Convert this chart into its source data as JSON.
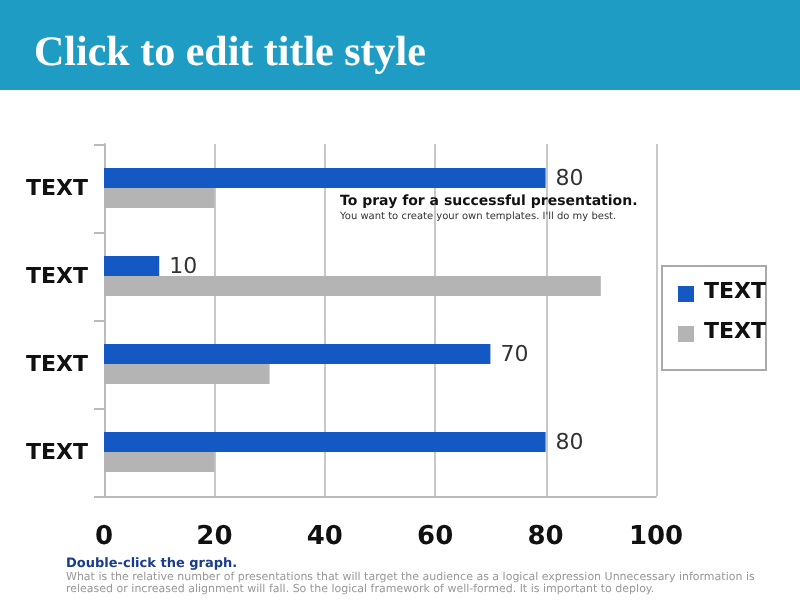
{
  "chart_data": {
    "type": "bar",
    "orientation": "horizontal",
    "title": "Click to edit title style",
    "categories": [
      "TEXT",
      "TEXT",
      "TEXT",
      "TEXT"
    ],
    "series": [
      {
        "name": "TEXT",
        "color": "#1458c4",
        "values": [
          80,
          10,
          70,
          80
        ],
        "value_labels": [
          "80",
          "10",
          "70",
          "80"
        ]
      },
      {
        "name": "TEXT",
        "color": "#b4b4b4",
        "values": [
          20,
          90,
          30,
          20
        ]
      }
    ],
    "xlim": [
      0,
      100
    ],
    "xticks": [
      0,
      20,
      40,
      60,
      80,
      100
    ],
    "grid": "x",
    "legend": "right",
    "annotations": [
      "To pray for a successful presentation.",
      "You want to create your own templates. I'll do my best.",
      "Double-click the graph.",
      "What is the relative number of presentations that will target the audience as a logical expression Unnecessary information is released or increased alignment will fall. So the logical framework of well-formed. It is important to deploy."
    ]
  }
}
